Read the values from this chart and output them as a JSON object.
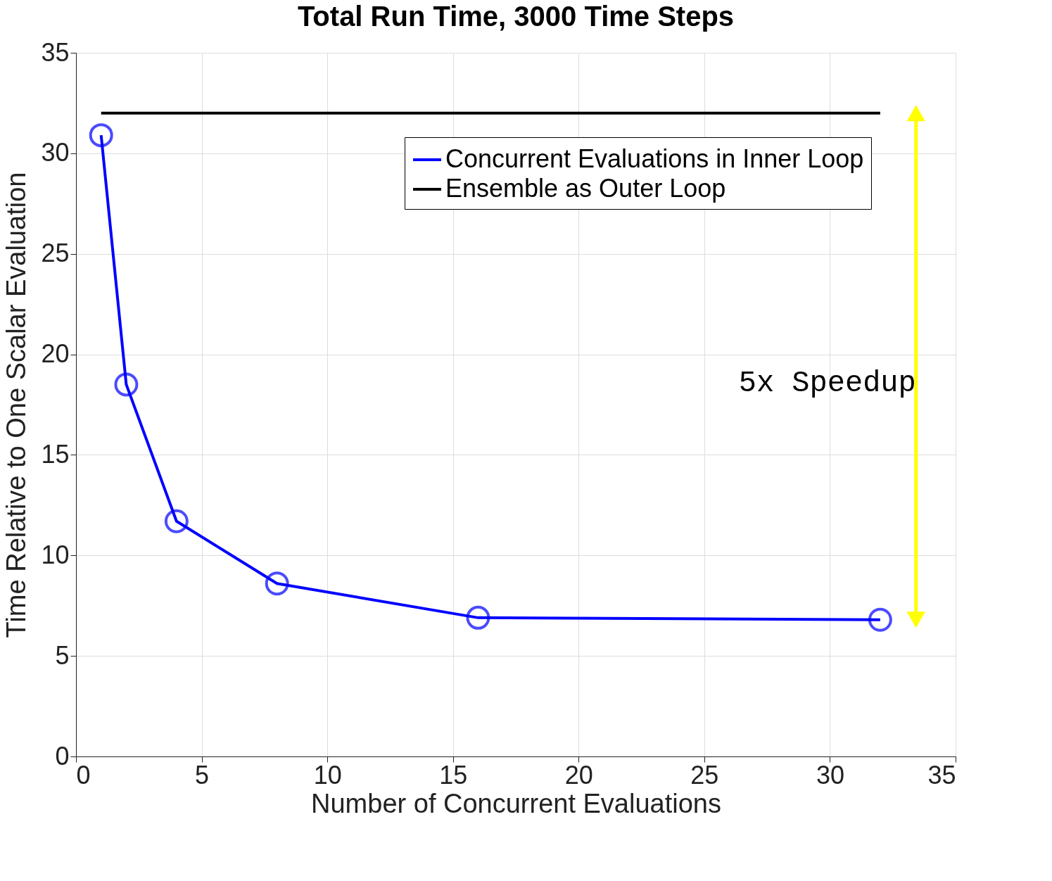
{
  "chart_data": {
    "type": "line",
    "title": "Total Run Time, 3000 Time Steps",
    "xlabel": "Number of Concurrent Evaluations",
    "ylabel": "Time Relative to One Scalar Evaluation",
    "series": [
      {
        "name": "Concurrent Evaluations in Inner Loop",
        "color": "#0000ff",
        "x": [
          1,
          2,
          4,
          8,
          16,
          32
        ],
        "values": [
          30.9,
          18.5,
          11.7,
          8.6,
          6.9,
          6.8
        ],
        "marker": "circle"
      },
      {
        "name": "Ensemble as Outer Loop",
        "color": "#000000",
        "x": [
          1,
          32
        ],
        "values": [
          32,
          32
        ],
        "marker": "none"
      }
    ],
    "xlim": [
      0,
      35
    ],
    "xticks": [
      0,
      5,
      10,
      15,
      20,
      25,
      30,
      35
    ],
    "ylim": [
      0,
      35
    ],
    "yticks": [
      0,
      5,
      10,
      15,
      20,
      25,
      30,
      35
    ],
    "annotations": [
      "5x Speedup"
    ],
    "grid": true,
    "legend": "top right",
    "line_style": "solid"
  }
}
